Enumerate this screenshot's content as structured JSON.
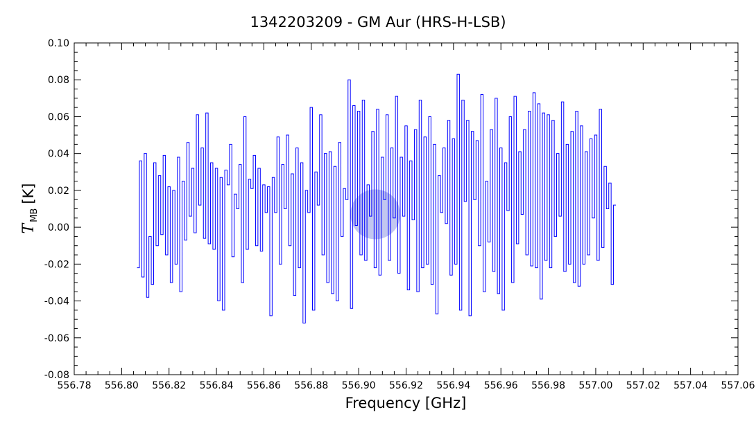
{
  "chart_data": {
    "type": "line",
    "title": "1342203209 - GM Aur (HRS-H-LSB)",
    "xlabel": "Frequency [GHz]",
    "ylabel": {
      "symbol": "T",
      "subscript": "MB",
      "unit": "[K]"
    },
    "xlim": [
      556.78,
      557.06
    ],
    "ylim": [
      -0.08,
      0.1
    ],
    "x_ticks": [
      "556.78",
      "556.80",
      "556.82",
      "556.84",
      "556.86",
      "556.88",
      "556.90",
      "556.92",
      "556.94",
      "556.96",
      "556.98",
      "557.00",
      "557.02",
      "557.04",
      "557.06"
    ],
    "y_ticks": [
      "-0.08",
      "-0.06",
      "-0.04",
      "-0.02",
      "0.00",
      "0.02",
      "0.04",
      "0.06",
      "0.08",
      "0.10"
    ],
    "grid": false,
    "highlight": {
      "x": 556.907,
      "y": 0.007,
      "color": "#8f97e3"
    },
    "series": [
      {
        "color": "#0000ff",
        "x_start": 556.8065,
        "x_step": 0.001,
        "values": [
          -0.022,
          0.036,
          -0.027,
          0.04,
          -0.038,
          -0.005,
          -0.031,
          0.035,
          -0.01,
          0.028,
          -0.004,
          0.039,
          -0.015,
          0.022,
          -0.03,
          0.02,
          -0.02,
          0.038,
          -0.035,
          0.025,
          -0.007,
          0.046,
          0.006,
          0.032,
          -0.003,
          0.061,
          0.012,
          0.043,
          -0.006,
          0.062,
          -0.009,
          0.035,
          -0.012,
          0.032,
          -0.04,
          0.027,
          -0.045,
          0.031,
          0.023,
          0.045,
          -0.016,
          0.018,
          0.01,
          0.034,
          -0.03,
          0.06,
          -0.012,
          0.026,
          0.021,
          0.039,
          -0.01,
          0.032,
          -0.013,
          0.023,
          0.008,
          0.022,
          -0.048,
          0.027,
          0.008,
          0.049,
          -0.02,
          0.034,
          0.01,
          0.05,
          -0.01,
          0.029,
          -0.037,
          0.043,
          -0.022,
          0.035,
          -0.052,
          0.02,
          0.008,
          0.065,
          -0.045,
          0.03,
          0.012,
          0.061,
          -0.015,
          0.04,
          -0.03,
          0.041,
          -0.036,
          0.033,
          -0.04,
          0.046,
          -0.005,
          0.021,
          0.015,
          0.08,
          -0.044,
          0.066,
          0.001,
          0.063,
          -0.015,
          0.069,
          -0.018,
          0.023,
          0.006,
          0.052,
          -0.022,
          0.064,
          -0.026,
          0.038,
          0.015,
          0.061,
          -0.018,
          0.043,
          0.005,
          0.071,
          -0.025,
          0.038,
          0.006,
          0.055,
          -0.034,
          0.036,
          0.004,
          0.053,
          -0.035,
          0.069,
          -0.022,
          0.049,
          -0.02,
          0.06,
          -0.031,
          0.045,
          -0.047,
          0.028,
          0.008,
          0.043,
          0.002,
          0.058,
          -0.026,
          0.048,
          -0.02,
          0.083,
          -0.045,
          0.069,
          0.014,
          0.058,
          -0.048,
          0.052,
          0.015,
          0.047,
          -0.01,
          0.072,
          -0.035,
          0.025,
          -0.008,
          0.053,
          -0.024,
          0.07,
          -0.036,
          0.043,
          -0.045,
          0.035,
          0.009,
          0.06,
          -0.03,
          0.071,
          -0.009,
          0.041,
          0.007,
          0.053,
          -0.015,
          0.063,
          -0.021,
          0.073,
          -0.022,
          0.067,
          -0.039,
          0.062,
          -0.018,
          0.061,
          -0.022,
          0.058,
          -0.005,
          0.04,
          0.006,
          0.068,
          -0.024,
          0.045,
          -0.02,
          0.052,
          -0.03,
          0.063,
          -0.032,
          0.055,
          -0.02,
          0.041,
          -0.015,
          0.048,
          0.005,
          0.05,
          -0.018,
          0.064,
          -0.011,
          0.033,
          0.01,
          0.024,
          -0.031,
          0.012
        ]
      }
    ]
  }
}
